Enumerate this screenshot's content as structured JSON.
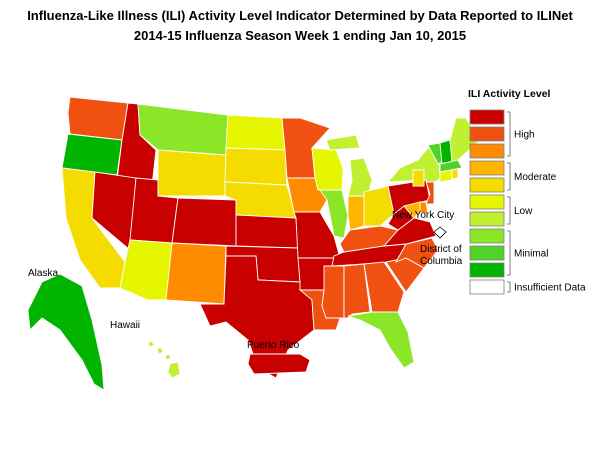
{
  "title_line1": "Influenza-Like Illness (ILI) Activity Level Indicator Determined by Data Reported to ILINet",
  "title_line2": "2014-15  Influenza Season Week  1 ending Jan 10, 2015",
  "legend": {
    "title": "ILI Activity Level",
    "levels": [
      {
        "level": 10,
        "color": "#c80000"
      },
      {
        "level": 9,
        "color": "#f05010"
      },
      {
        "level": 8,
        "color": "#ff8c00"
      },
      {
        "level": 7,
        "color": "#ffb400"
      },
      {
        "level": 6,
        "color": "#f5dc00"
      },
      {
        "level": 5,
        "color": "#e6f500"
      },
      {
        "level": 4,
        "color": "#c0f030"
      },
      {
        "level": 3,
        "color": "#8ce628"
      },
      {
        "level": 2,
        "color": "#50d228"
      },
      {
        "level": 1,
        "color": "#00b400"
      },
      {
        "level": 0,
        "color": "#ffffff"
      }
    ],
    "groups": [
      {
        "label": "High",
        "from_level": 10,
        "to_level": 8
      },
      {
        "label": "Moderate",
        "from_level": 7,
        "to_level": 6
      },
      {
        "label": "Low",
        "from_level": 5,
        "to_level": 4
      },
      {
        "label": "Minimal",
        "from_level": 3,
        "to_level": 1
      },
      {
        "label": "Insufficient Data",
        "from_level": 0,
        "to_level": 0
      }
    ]
  },
  "place_labels": {
    "alaska": "Alaska",
    "hawaii": "Hawaii",
    "puerto_rico": "Puerto Rico",
    "nyc": "New York City",
    "dc_line1": "District of",
    "dc_line2": "Columbia"
  },
  "states": [
    {
      "name": "WA",
      "level": 9
    },
    {
      "name": "OR",
      "level": 1
    },
    {
      "name": "CA",
      "level": 6
    },
    {
      "name": "ID",
      "level": 10
    },
    {
      "name": "NV",
      "level": 10
    },
    {
      "name": "UT",
      "level": 10
    },
    {
      "name": "AZ",
      "level": 5
    },
    {
      "name": "MT",
      "level": 3
    },
    {
      "name": "WY",
      "level": 6
    },
    {
      "name": "CO",
      "level": 10
    },
    {
      "name": "NM",
      "level": 8
    },
    {
      "name": "ND",
      "level": 5
    },
    {
      "name": "SD",
      "level": 6
    },
    {
      "name": "NE",
      "level": 6
    },
    {
      "name": "KS",
      "level": 10
    },
    {
      "name": "OK",
      "level": 10
    },
    {
      "name": "TX",
      "level": 10
    },
    {
      "name": "MN",
      "level": 9
    },
    {
      "name": "IA",
      "level": 8
    },
    {
      "name": "MO",
      "level": 10
    },
    {
      "name": "AR",
      "level": 10
    },
    {
      "name": "LA",
      "level": 9
    },
    {
      "name": "WI",
      "level": 5
    },
    {
      "name": "IL",
      "level": 3
    },
    {
      "name": "MI",
      "level": 4
    },
    {
      "name": "IN",
      "level": 7
    },
    {
      "name": "OH",
      "level": 6
    },
    {
      "name": "KY",
      "level": 9
    },
    {
      "name": "TN",
      "level": 10
    },
    {
      "name": "MS",
      "level": 9
    },
    {
      "name": "AL",
      "level": 9
    },
    {
      "name": "GA",
      "level": 9
    },
    {
      "name": "FL",
      "level": 3
    },
    {
      "name": "SC",
      "level": 9
    },
    {
      "name": "NC",
      "level": 9
    },
    {
      "name": "VA",
      "level": 10
    },
    {
      "name": "WV",
      "level": 10
    },
    {
      "name": "PA",
      "level": 10
    },
    {
      "name": "NY",
      "level": 4
    },
    {
      "name": "VT",
      "level": 2
    },
    {
      "name": "NH",
      "level": 1
    },
    {
      "name": "ME",
      "level": 4
    },
    {
      "name": "MA",
      "level": 2
    },
    {
      "name": "CT",
      "level": 5
    },
    {
      "name": "NJ",
      "level": 9
    },
    {
      "name": "MD",
      "level": 7
    },
    {
      "name": "DE",
      "level": 8
    },
    {
      "name": "RI",
      "level": 6
    },
    {
      "name": "NYC",
      "level": 6
    },
    {
      "name": "DC",
      "level": 0
    },
    {
      "name": "AK",
      "level": 1
    },
    {
      "name": "HI",
      "level": 4
    },
    {
      "name": "PR",
      "level": 10
    }
  ]
}
